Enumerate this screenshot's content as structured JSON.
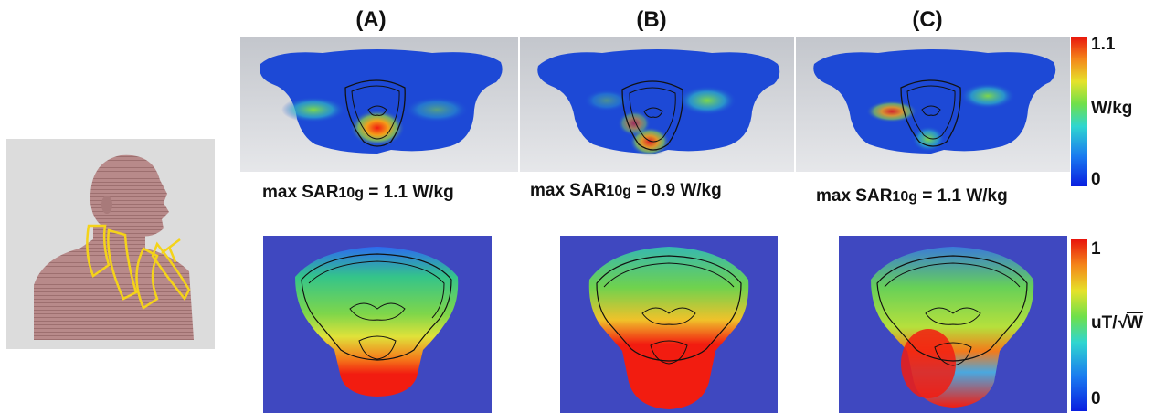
{
  "columns": [
    {
      "label": "(A)"
    },
    {
      "label": "(B)"
    },
    {
      "label": "(C)"
    }
  ],
  "sar_labels": [
    {
      "prefix": "max SAR",
      "sub": "10g",
      "suffix": " = 1.1 W/kg"
    },
    {
      "prefix": "max SAR",
      "sub": "10g",
      "suffix": " = 0.9 W/kg"
    },
    {
      "prefix": "max SAR",
      "sub": "10g",
      "suffix": " = 1.1 W/kg"
    }
  ],
  "colorbar_sar": {
    "max": "1.1",
    "unit": "W/kg",
    "min": "0"
  },
  "colorbar_b1": {
    "max": "1",
    "unit_prefix": "uT/",
    "unit_root": "W",
    "min": "0"
  },
  "colors": {
    "gray_bg": "#c9ccd2",
    "blue_field": "#3f48c0",
    "body_blue": "#1d49d6",
    "hot_red": "#f21c10",
    "coil_yellow": "#f4d31a",
    "model_skin": "#b98c8c"
  }
}
